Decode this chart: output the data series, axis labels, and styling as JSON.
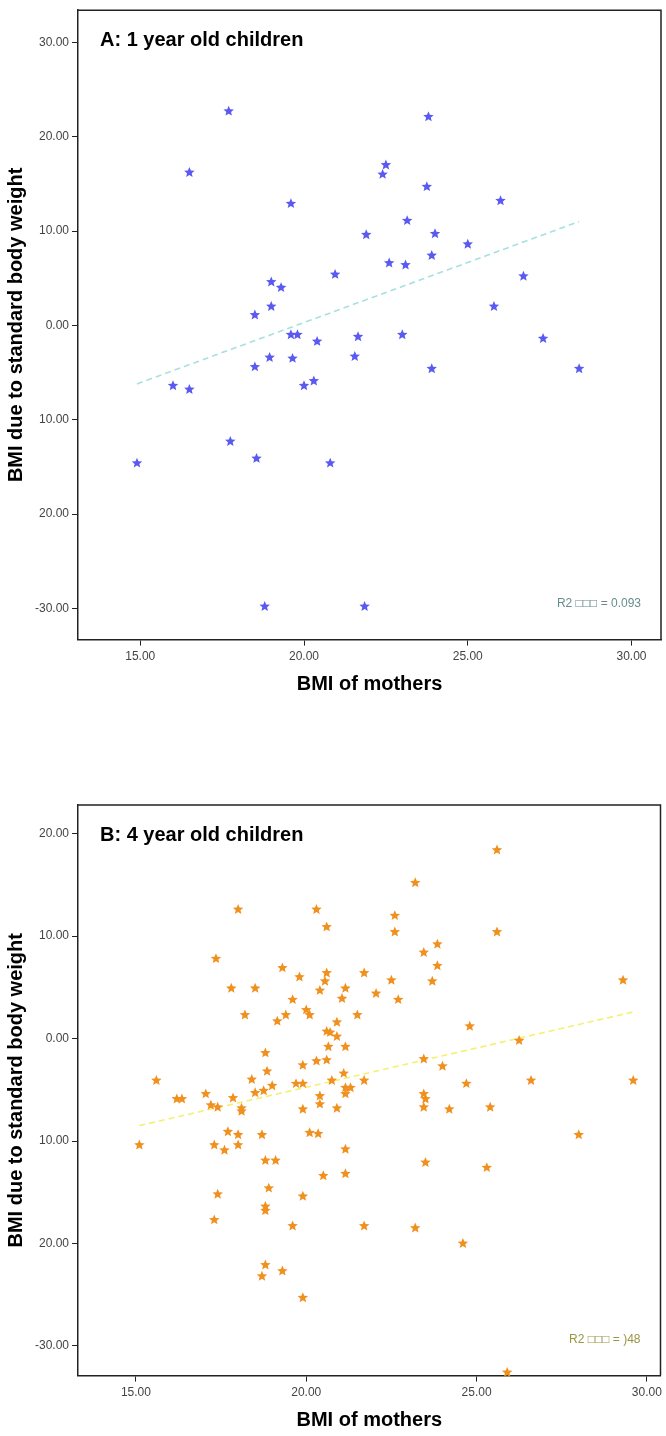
{
  "chart_data": [
    {
      "type": "scatter",
      "title": "A: 1 year old children",
      "xlabel": "BMI of mothers",
      "ylabel": "BMI due to standard body weight",
      "xlim": [
        13.1,
        30.9
      ],
      "ylim": [
        -33.3,
        33.4
      ],
      "xticks": [
        {
          "value": 15,
          "label": "15.00"
        },
        {
          "value": 20,
          "label": "20.00"
        },
        {
          "value": 25,
          "label": "25.00"
        },
        {
          "value": 30,
          "label": "30.00"
        }
      ],
      "yticks": [
        {
          "value": 30,
          "label": "30.00"
        },
        {
          "value": 20,
          "label": "20.00"
        },
        {
          "value": 10,
          "label": "10.00"
        },
        {
          "value": 0,
          "label": "0.00"
        },
        {
          "value": -10,
          "label": "10.00"
        },
        {
          "value": -20,
          "label": "20.00"
        },
        {
          "value": -30,
          "label": "-30.00"
        }
      ],
      "series": [
        {
          "type": "scatter",
          "marker": "star",
          "color": "#5a5af0",
          "x": [
            17.7,
            23.8,
            16.5,
            22.5,
            22.4,
            23.75,
            19.6,
            26.0,
            23.15,
            21.9,
            24.0,
            25.0,
            20.95,
            22.6,
            23.1,
            23.9,
            26.7,
            19.0,
            19.3,
            19.0,
            18.5,
            25.8,
            19.6,
            19.8,
            20.4,
            21.65,
            23.0,
            27.3,
            18.5,
            18.95,
            19.65,
            21.55,
            23.9,
            28.4,
            16.0,
            16.5,
            20.0,
            20.3,
            14.9,
            17.75,
            18.55,
            20.8,
            18.8,
            21.85
          ],
          "values": [
            22.7,
            22.1,
            16.2,
            17.0,
            16.0,
            14.7,
            12.9,
            13.2,
            11.1,
            9.6,
            9.7,
            8.6,
            5.4,
            6.6,
            6.4,
            7.4,
            5.2,
            4.6,
            4.0,
            2.0,
            1.1,
            2.0,
            -1.0,
            -1.0,
            -1.7,
            -1.2,
            -1.0,
            -1.4,
            -4.4,
            -3.4,
            -3.5,
            -3.3,
            -4.6,
            -4.6,
            -6.4,
            -6.8,
            -6.4,
            -5.9,
            -14.6,
            -12.3,
            -14.1,
            -14.6,
            -29.8,
            -29.8
          ]
        },
        {
          "type": "line",
          "marker": "none",
          "color": "#a8e0e0",
          "line_style": "dashed",
          "x": [
            14.9,
            28.4
          ],
          "values": [
            -6.2,
            11.0
          ]
        }
      ],
      "annotations": [
        "R2 □□□ = 0.093"
      ]
    },
    {
      "type": "scatter",
      "title": "B: 4 year old children",
      "xlabel": "BMI of mothers",
      "ylabel": "BMI due to standard body weight",
      "xlim": [
        13.3,
        30.4
      ],
      "ylim": [
        -32.9,
        22.8
      ],
      "xticks": [
        {
          "value": 15,
          "label": "15.00"
        },
        {
          "value": 20,
          "label": "20.00"
        },
        {
          "value": 25,
          "label": "25.00"
        },
        {
          "value": 30,
          "label": "30.00"
        }
      ],
      "yticks": [
        {
          "value": 20,
          "label": "20.00"
        },
        {
          "value": 10,
          "label": "10.00"
        },
        {
          "value": 0,
          "label": "0.00"
        },
        {
          "value": -10,
          "label": "10.00"
        },
        {
          "value": -20,
          "label": "20.00"
        },
        {
          "value": -30,
          "label": "-30.00"
        }
      ],
      "series": [
        {
          "type": "scatter",
          "marker": "star",
          "color": "#f0901e",
          "x": [
            25.6,
            23.2,
            18.0,
            20.3,
            22.6,
            20.6,
            22.6,
            25.6,
            17.35,
            23.85,
            23.45,
            23.85,
            19.3,
            19.8,
            20.6,
            20.55,
            21.7,
            22.5,
            29.3,
            23.7,
            17.8,
            18.5,
            20.4,
            21.15,
            19.6,
            21.05,
            22.05,
            22.7,
            18.2,
            19.4,
            20.0,
            20.1,
            21.5,
            19.15,
            20.9,
            20.6,
            20.7,
            20.9,
            24.8,
            26.25,
            20.65,
            21.15,
            18.8,
            19.9,
            20.3,
            20.6,
            23.45,
            24.0,
            18.85,
            15.6,
            18.4,
            19.0,
            18.5,
            18.75,
            19.7,
            19.9,
            20.75,
            21.1,
            21.7,
            21.15,
            21.3,
            21.15,
            24.7,
            26.6,
            29.6,
            16.2,
            16.35,
            17.05,
            17.85,
            17.2,
            17.4,
            18.1,
            18.1,
            20.4,
            20.4,
            19.9,
            20.9,
            23.45,
            23.5,
            23.45,
            24.2,
            25.4,
            15.1,
            17.7,
            18.0,
            18.7,
            20.1,
            20.35,
            17.3,
            17.6,
            18.0,
            21.15,
            28.0,
            18.8,
            19.1,
            23.5,
            25.3,
            20.5,
            21.15,
            18.9,
            17.4,
            19.9,
            18.8,
            18.8,
            17.3,
            19.6,
            21.7,
            23.2,
            24.6,
            18.8,
            19.3,
            18.7,
            19.9,
            25.9
          ],
          "values": [
            18.4,
            15.2,
            12.6,
            12.6,
            12.0,
            10.9,
            10.4,
            10.4,
            7.8,
            9.2,
            8.4,
            7.1,
            6.9,
            6.0,
            6.4,
            5.6,
            6.4,
            5.7,
            5.7,
            5.6,
            4.9,
            4.9,
            4.7,
            4.9,
            3.8,
            3.9,
            4.4,
            3.8,
            2.3,
            2.3,
            2.8,
            2.3,
            2.3,
            1.7,
            1.6,
            0.7,
            0.6,
            0.2,
            1.2,
            -0.2,
            -0.8,
            -0.8,
            -1.4,
            -2.6,
            -2.2,
            -2.1,
            -2.0,
            -2.7,
            -3.2,
            -4.1,
            -4.0,
            -4.6,
            -5.3,
            -5.1,
            -4.4,
            -4.4,
            -4.1,
            -3.4,
            -4.1,
            -4.8,
            -4.8,
            -5.4,
            -4.4,
            -4.1,
            -4.1,
            -5.9,
            -5.9,
            -5.4,
            -5.8,
            -6.5,
            -6.7,
            -6.8,
            -7.1,
            -5.6,
            -6.4,
            -6.9,
            -6.8,
            -5.4,
            -5.9,
            -6.7,
            -6.9,
            -6.7,
            -10.4,
            -9.1,
            -9.4,
            -9.4,
            -9.2,
            -9.3,
            -10.4,
            -10.9,
            -10.4,
            -10.8,
            -9.4,
            -11.9,
            -11.9,
            -12.1,
            -12.6,
            -13.4,
            -13.2,
            -14.6,
            -15.2,
            -15.4,
            -16.4,
            -16.8,
            -17.7,
            -18.3,
            -18.3,
            -18.5,
            -20.0,
            -22.1,
            -22.7,
            -23.2,
            -25.3,
            -32.6
          ]
        },
        {
          "type": "line",
          "marker": "none",
          "color": "#f5f06e",
          "line_style": "dashed",
          "x": [
            15.1,
            29.6
          ],
          "values": [
            -8.5,
            2.6
          ]
        }
      ],
      "annotations": [
        "R2 □□□ = )48"
      ]
    }
  ]
}
